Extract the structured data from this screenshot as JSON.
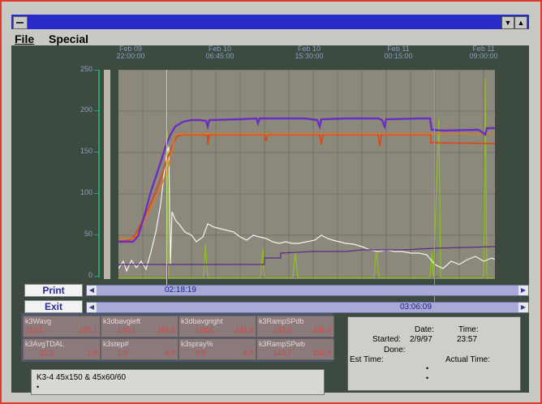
{
  "menu": {
    "file": "File",
    "special": "Special"
  },
  "time_labels": [
    {
      "date": "Feb 09",
      "time": "22:00:00"
    },
    {
      "date": "Feb 10",
      "time": "06:45:00"
    },
    {
      "date": "Feb 10",
      "time": "15:30:00"
    },
    {
      "date": "Feb 11",
      "time": "00:15:00"
    },
    {
      "date": "Feb 11",
      "time": "09:00:00"
    }
  ],
  "y_ticks": [
    "250",
    "200",
    "150",
    "100",
    "50",
    "0"
  ],
  "buttons": {
    "print": "Print",
    "exit": "Exit"
  },
  "cursors": {
    "cursor1_time": "02:18:19",
    "cursor2_time": "03:06:09"
  },
  "cells": [
    {
      "name": "k3Wavg",
      "v1": "112.1",
      "v2": "157.1"
    },
    {
      "name": "k3dbavgleft",
      "v1": "146.1",
      "v2": "160.5"
    },
    {
      "name": "k3dbavgright",
      "v1": "118.6",
      "v2": "181.2"
    },
    {
      "name": "k3RampSPdb",
      "v1": "153.0",
      "v2": "180.0"
    },
    {
      "name": "k3AvgTDAL",
      "v1": "27.3",
      "v2": "1.9"
    },
    {
      "name": "k3step#",
      "v1": "1.0",
      "v2": "4.0"
    },
    {
      "name": "k3spray%",
      "v1": "0.0",
      "v2": "4.0"
    },
    {
      "name": "k3RampSPwb",
      "v1": "143.7",
      "v2": "160.0"
    }
  ],
  "message": "K3-4 45x150 & 45x60/60",
  "info": {
    "date_header": "Date:",
    "time_header": "Time:",
    "started_label": "Started:",
    "started_date": "2/9/97",
    "started_time": "23:57",
    "done_label": "Done:",
    "est_time_label": "Est Time:",
    "actual_time_label": "Actual Time:"
  },
  "colors": {
    "title_bar": "#2a2cc9",
    "plot_bg": "#8d887c",
    "series_purple": "#6a2fc0",
    "series_red": "#d94a1a",
    "series_orange": "#e07820",
    "series_white": "#f4f4f4",
    "series_green": "#8fbf20"
  }
}
